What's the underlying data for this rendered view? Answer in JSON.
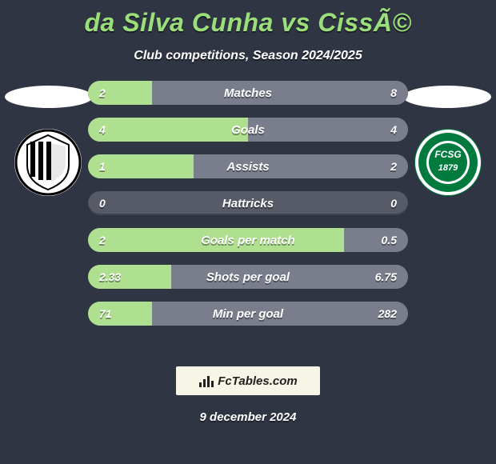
{
  "background_color": "#303544",
  "title": "da Silva Cunha vs CissÃ©",
  "title_color": "#9adf79",
  "subtitle": "Club competitions, Season 2024/2025",
  "subtitle_color": "#ffffff",
  "left_team": {
    "name": "Vitoria Guimaraes",
    "badge_bg": "#ffffff",
    "badge_stripes": "#000000"
  },
  "right_team": {
    "name": "FC St. Gallen",
    "badge_bg": "#007a3d",
    "badge_ring": "#ffffff",
    "badge_text": "FCSG"
  },
  "bars": {
    "track_color": "#575b68",
    "left_fill_color": "#aee08f",
    "right_fill_color": "#7a7e8c",
    "label_color": "#ffffff",
    "value_color": "#ffffff",
    "rows": [
      {
        "label": "Matches",
        "left_value": "2",
        "right_value": "8",
        "left_pct": 20,
        "right_pct": 80
      },
      {
        "label": "Goals",
        "left_value": "4",
        "right_value": "4",
        "left_pct": 50,
        "right_pct": 50
      },
      {
        "label": "Assists",
        "left_value": "1",
        "right_value": "2",
        "left_pct": 33,
        "right_pct": 67
      },
      {
        "label": "Hattricks",
        "left_value": "0",
        "right_value": "0",
        "left_pct": 0,
        "right_pct": 0
      },
      {
        "label": "Goals per match",
        "left_value": "2",
        "right_value": "0.5",
        "left_pct": 80,
        "right_pct": 20
      },
      {
        "label": "Shots per goal",
        "left_value": "2.33",
        "right_value": "6.75",
        "left_pct": 26,
        "right_pct": 74
      },
      {
        "label": "Min per goal",
        "left_value": "71",
        "right_value": "282",
        "left_pct": 20,
        "right_pct": 80
      }
    ]
  },
  "footer_logo": {
    "bg": "#f7f5e6",
    "text": "FcTables.com",
    "icon_color": "#222222"
  },
  "date": "9 december 2024"
}
